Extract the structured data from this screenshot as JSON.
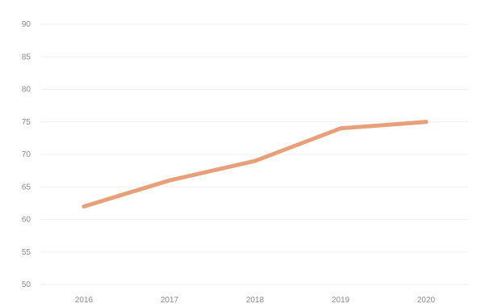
{
  "chart_data": {
    "type": "line",
    "title": "",
    "xlabel": "",
    "ylabel": "",
    "categories": [
      "2016",
      "2017",
      "2018",
      "2019",
      "2020"
    ],
    "series": [
      {
        "values": [
          62,
          66,
          69,
          74,
          75
        ],
        "color": "#e8a07a"
      }
    ],
    "ylim": [
      50,
      90
    ],
    "y_ticks": [
      50,
      55,
      60,
      65,
      70,
      75,
      80,
      85,
      90
    ],
    "grid": true,
    "legend": "none"
  }
}
